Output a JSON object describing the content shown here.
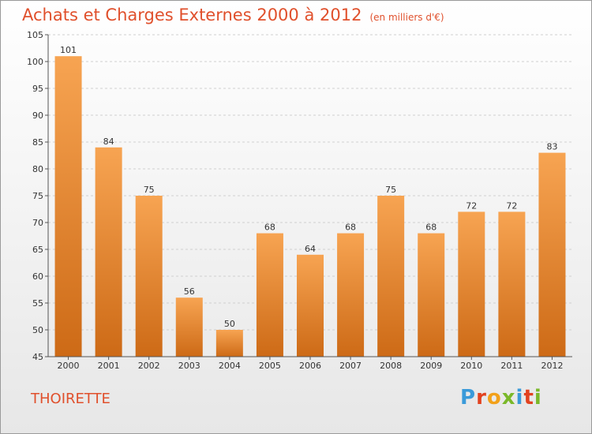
{
  "header": {
    "title": "Achats et Charges Externes 2000 à 2012",
    "unit": "(en milliers d'€)"
  },
  "footer": {
    "commune": "THOIRETTE",
    "logo_letters": [
      {
        "char": "P",
        "color": "#3a9ad9"
      },
      {
        "char": "r",
        "color": "#e2421f"
      },
      {
        "char": "o",
        "color": "#f2a11a"
      },
      {
        "char": "x",
        "color": "#7ab829"
      },
      {
        "char": "i",
        "color": "#3a9ad9"
      },
      {
        "char": "t",
        "color": "#e2421f"
      },
      {
        "char": "i",
        "color": "#7ab829"
      }
    ]
  },
  "colors": {
    "title": "#e0502c",
    "bar_top": "#f7a452",
    "bar_bottom": "#cd6a16",
    "grid": "#d0d0d0",
    "axis": "#555555"
  },
  "chart_data": {
    "type": "bar",
    "categories": [
      "2000",
      "2001",
      "2002",
      "2003",
      "2004",
      "2005",
      "2006",
      "2007",
      "2008",
      "2009",
      "2010",
      "2011",
      "2012"
    ],
    "values": [
      101,
      84,
      75,
      56,
      50,
      68,
      64,
      68,
      75,
      68,
      72,
      72,
      83
    ],
    "ylim": [
      45,
      105
    ],
    "yticks": [
      45,
      50,
      55,
      60,
      65,
      70,
      75,
      80,
      85,
      90,
      95,
      100,
      105
    ],
    "grid": true
  }
}
